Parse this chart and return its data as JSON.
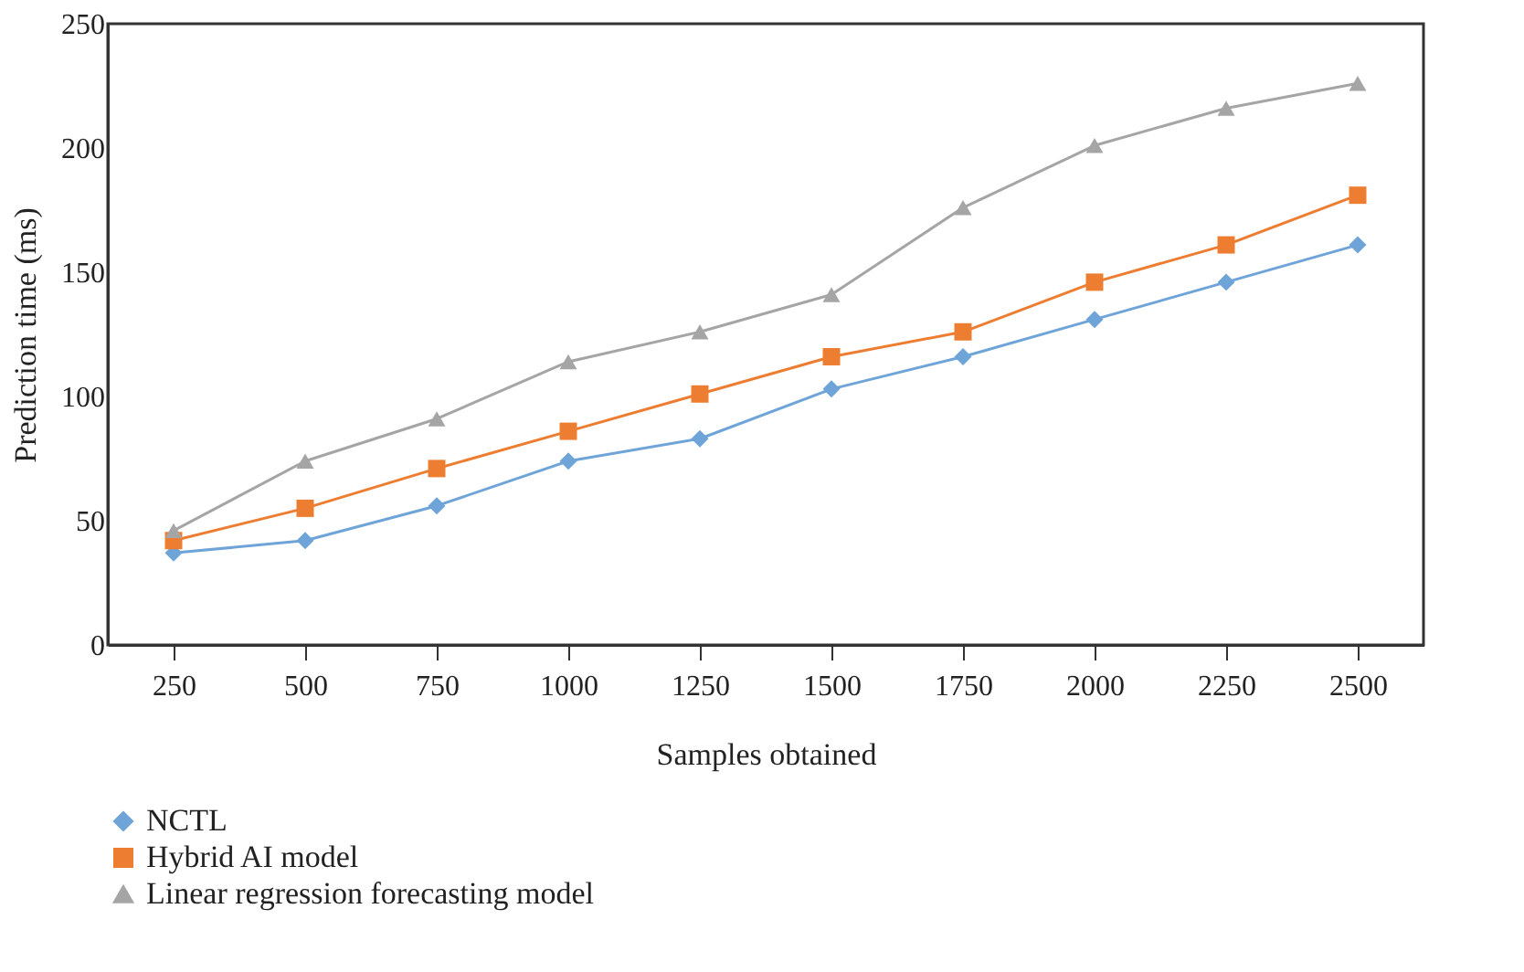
{
  "chart_data": {
    "type": "line",
    "xlabel": "Samples obtained",
    "ylabel": "Prediction time (ms)",
    "categories": [
      "250",
      "500",
      "750",
      "1000",
      "1250",
      "1500",
      "1750",
      "2000",
      "2250",
      "2500"
    ],
    "series": [
      {
        "name": "NCTL",
        "color": "#6fa4d8",
        "marker": "diamond",
        "values": [
          37,
          42,
          56,
          74,
          83,
          103,
          116,
          131,
          146,
          161
        ]
      },
      {
        "name": "Hybrid AI model",
        "color": "#ed7d31",
        "marker": "square",
        "values": [
          42,
          55,
          71,
          86,
          101,
          116,
          126,
          146,
          161,
          181
        ]
      },
      {
        "name": "Linear regression forecasting model",
        "color": "#a5a5a5",
        "marker": "triangle",
        "values": [
          46,
          74,
          91,
          114,
          126,
          141,
          176,
          201,
          216,
          226
        ]
      }
    ],
    "ylim": [
      0,
      250
    ],
    "yticks": [
      0,
      50,
      100,
      150,
      200,
      250
    ],
    "grid": false,
    "legend": "bottom"
  }
}
